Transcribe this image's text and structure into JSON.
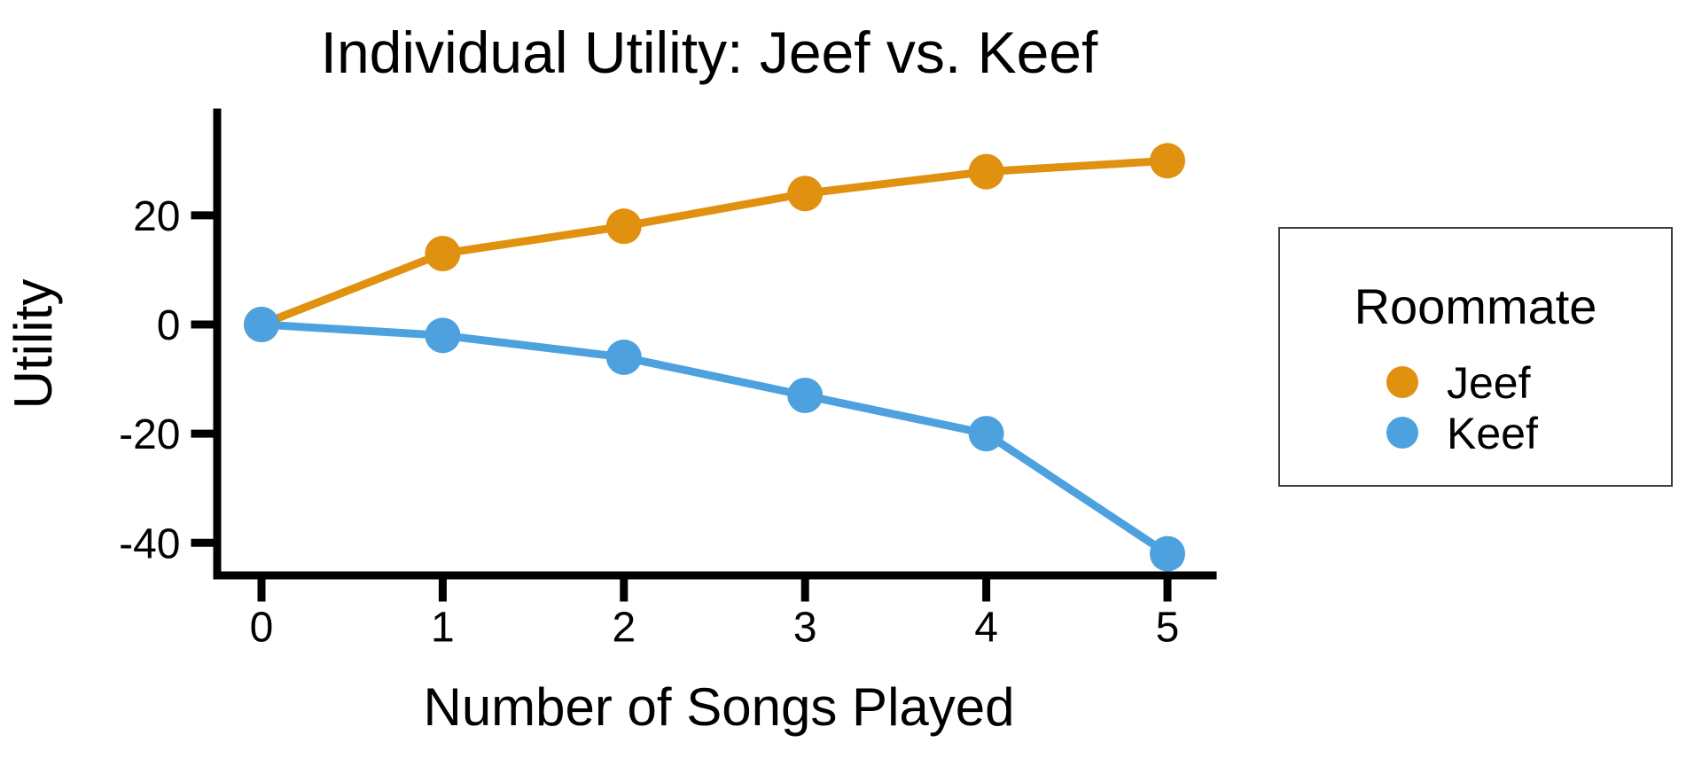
{
  "chart_data": {
    "type": "line",
    "title": "Individual Utility: Jeef vs. Keef",
    "xlabel": "Number of Songs Played",
    "ylabel": "Utility",
    "x": [
      0,
      1,
      2,
      3,
      4,
      5
    ],
    "x_tick_labels": [
      "0",
      "1",
      "2",
      "3",
      "4",
      "5"
    ],
    "y_ticks": [
      20,
      0,
      -20,
      -40
    ],
    "y_tick_labels": [
      "20",
      "0",
      "-20",
      "-40"
    ],
    "xlim": [
      -0.25,
      5.25
    ],
    "ylim": [
      -46,
      38.6
    ],
    "grid": false,
    "series": [
      {
        "name": "Jeef",
        "color": "#E0910F",
        "values": [
          0,
          13,
          18,
          24,
          28,
          30
        ]
      },
      {
        "name": "Keef",
        "color": "#4DA1DE",
        "values": [
          0,
          -2,
          -6,
          -13,
          -20,
          -42
        ]
      }
    ],
    "legend": {
      "title": "Roommate",
      "position": "right",
      "items": [
        {
          "label": "Jeef",
          "color": "#E0910F"
        },
        {
          "label": "Keef",
          "color": "#4DA1DE"
        }
      ]
    }
  },
  "colors": {
    "background": "#FFFFFF",
    "axis": "#000000",
    "text": "#000000",
    "legend_border": "#3C3C3C"
  }
}
